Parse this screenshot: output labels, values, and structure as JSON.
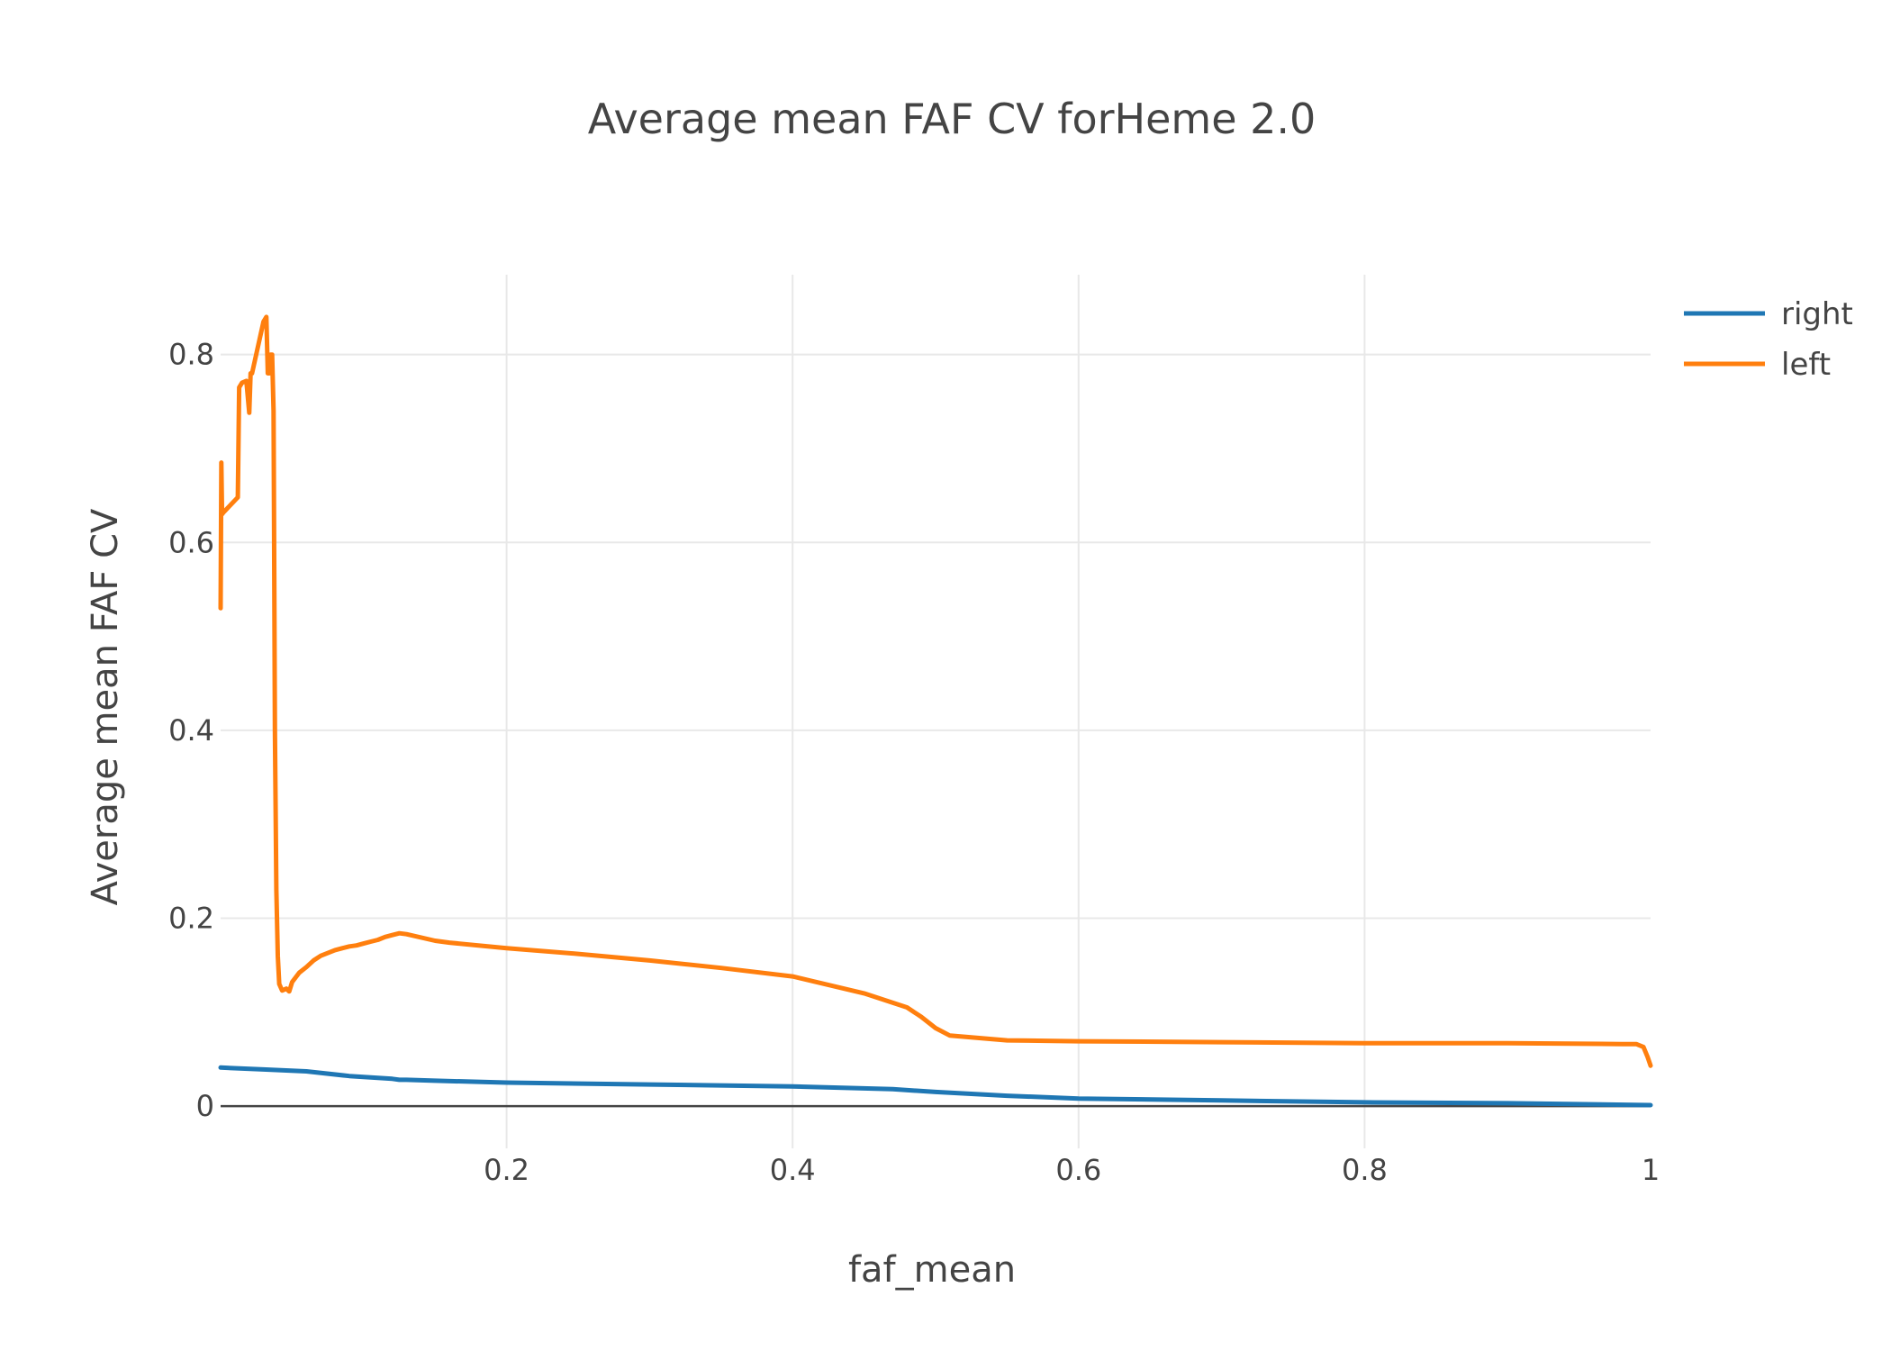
{
  "chart_data": {
    "type": "line",
    "title": "Average mean FAF CV forHeme 2.0",
    "xlabel": "faf_mean",
    "ylabel": "Average mean FAF CV",
    "xlim": [
      0,
      1
    ],
    "ylim": [
      -0.045,
      0.885
    ],
    "x_ticks": [
      0.2,
      0.4,
      0.6,
      0.8,
      1
    ],
    "x_tick_labels": [
      "0.2",
      "0.4",
      "0.6",
      "0.8",
      "1"
    ],
    "y_ticks": [
      0,
      0.2,
      0.4,
      0.6,
      0.8
    ],
    "y_tick_labels": [
      "0",
      "0.2",
      "0.4",
      "0.6",
      "0.8"
    ],
    "grid": true,
    "legend_position": "top-right",
    "series": [
      {
        "name": "right",
        "color": "#1f77b4",
        "x": [
          0.0,
          0.03,
          0.06,
          0.09,
          0.12,
          0.125,
          0.13,
          0.15,
          0.2,
          0.3,
          0.4,
          0.47,
          0.5,
          0.55,
          0.6,
          0.7,
          0.8,
          0.9,
          1.0
        ],
        "y": [
          0.041,
          0.039,
          0.037,
          0.032,
          0.029,
          0.028,
          0.028,
          0.027,
          0.025,
          0.023,
          0.021,
          0.018,
          0.015,
          0.011,
          0.008,
          0.006,
          0.004,
          0.003,
          0.001
        ]
      },
      {
        "name": "left",
        "color": "#ff7f0e",
        "x": [
          0.0,
          0.0005,
          0.001,
          0.002,
          0.012,
          0.013,
          0.015,
          0.018,
          0.02,
          0.021,
          0.022,
          0.03,
          0.032,
          0.033,
          0.034,
          0.035,
          0.036,
          0.037,
          0.038,
          0.039,
          0.04,
          0.041,
          0.043,
          0.046,
          0.048,
          0.05,
          0.055,
          0.06,
          0.065,
          0.07,
          0.075,
          0.08,
          0.085,
          0.09,
          0.095,
          0.1,
          0.105,
          0.11,
          0.115,
          0.12,
          0.125,
          0.13,
          0.15,
          0.16,
          0.2,
          0.25,
          0.3,
          0.35,
          0.4,
          0.45,
          0.48,
          0.49,
          0.5,
          0.51,
          0.55,
          0.6,
          0.7,
          0.8,
          0.9,
          0.98,
          0.99,
          0.995,
          0.998,
          1.0
        ],
        "y": [
          0.53,
          0.685,
          0.63,
          0.632,
          0.648,
          0.765,
          0.77,
          0.772,
          0.738,
          0.78,
          0.78,
          0.835,
          0.84,
          0.78,
          0.78,
          0.8,
          0.8,
          0.74,
          0.4,
          0.23,
          0.16,
          0.13,
          0.123,
          0.125,
          0.122,
          0.132,
          0.142,
          0.148,
          0.155,
          0.16,
          0.163,
          0.166,
          0.168,
          0.17,
          0.171,
          0.173,
          0.175,
          0.177,
          0.18,
          0.182,
          0.184,
          0.183,
          0.176,
          0.174,
          0.168,
          0.162,
          0.155,
          0.147,
          0.138,
          0.12,
          0.105,
          0.095,
          0.083,
          0.075,
          0.07,
          0.069,
          0.068,
          0.067,
          0.067,
          0.066,
          0.066,
          0.063,
          0.052,
          0.043
        ]
      }
    ]
  }
}
